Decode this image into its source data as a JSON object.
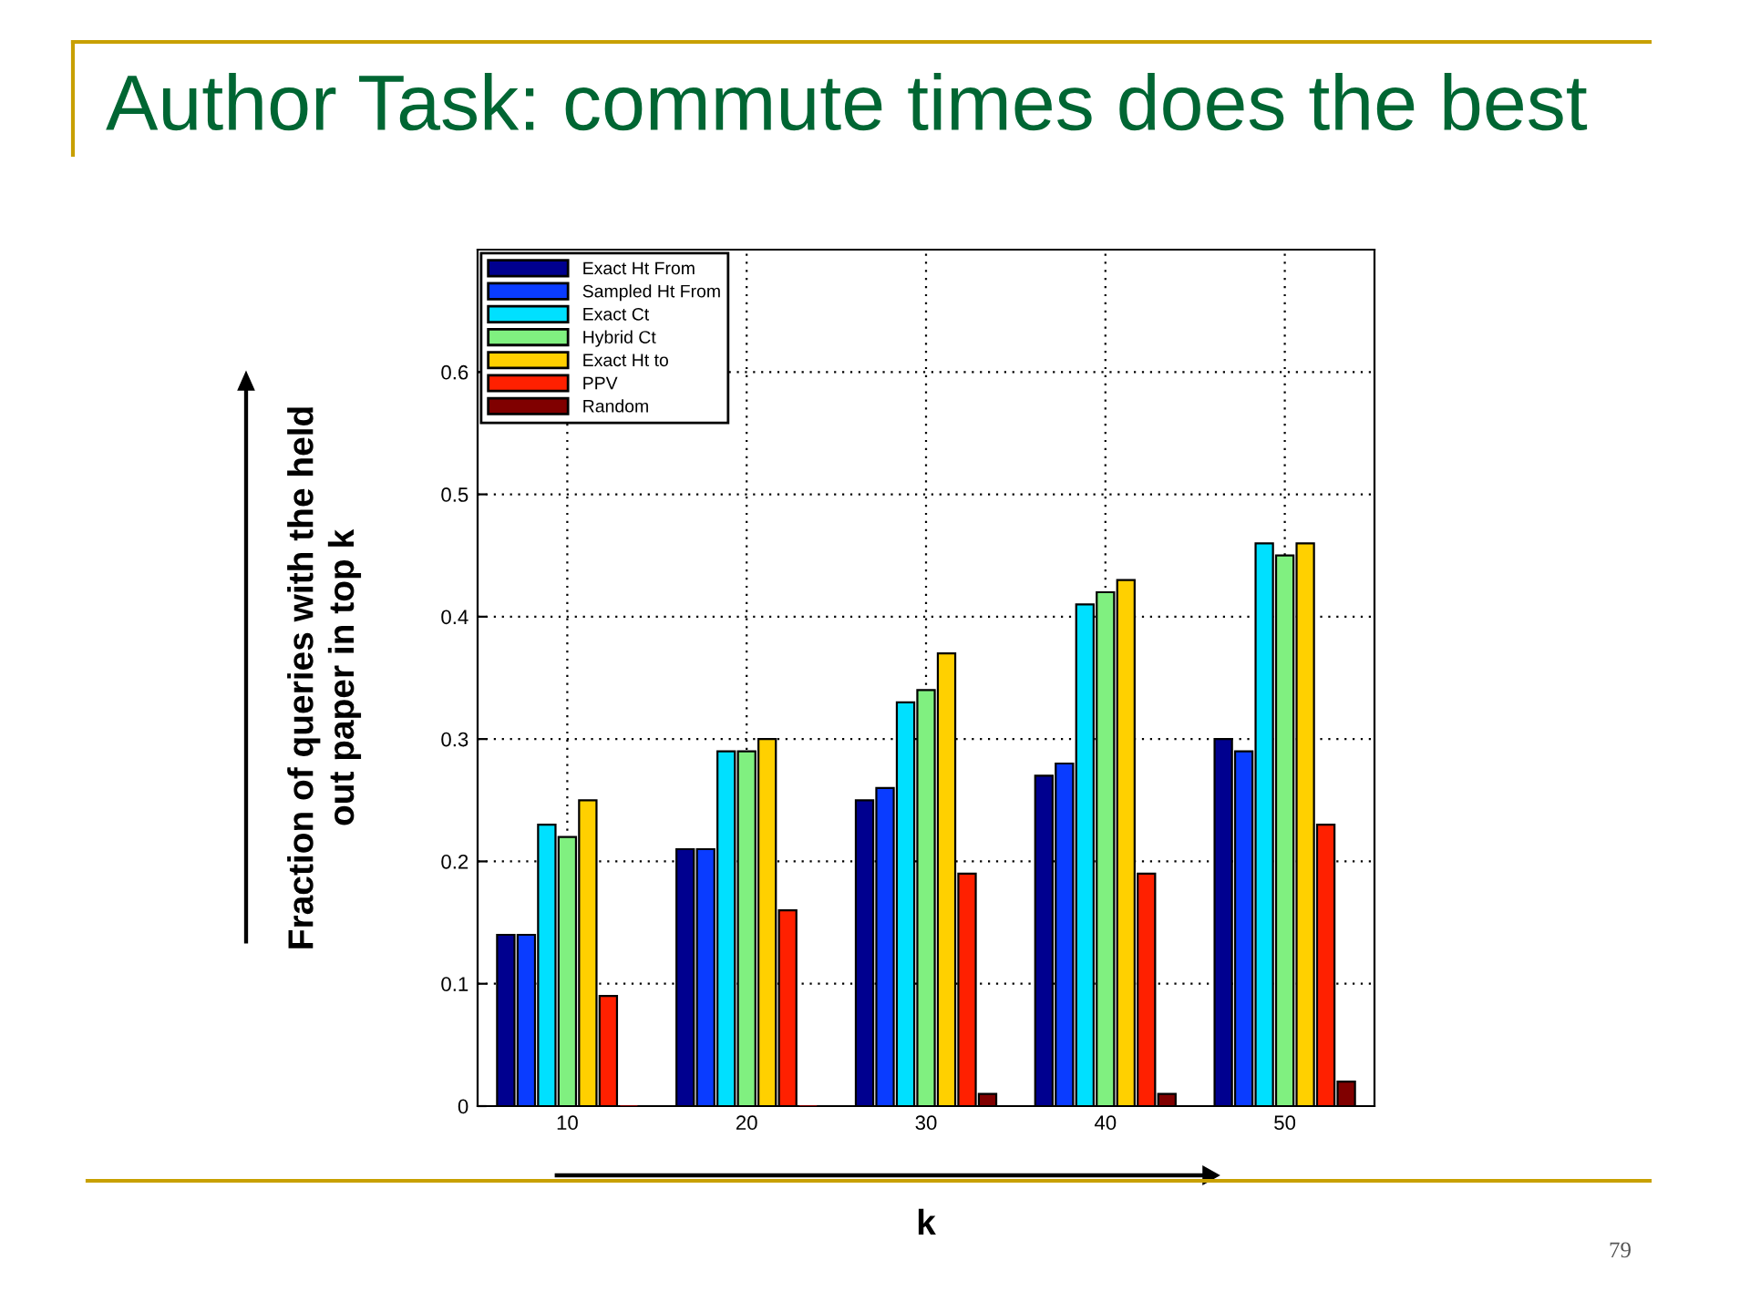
{
  "chart_data": {
    "type": "bar",
    "title": "Author Task: commute times does the best",
    "xlabel": "k",
    "ylabel": "Fraction of queries with the held\nout paper in top k",
    "categories": [
      "10",
      "20",
      "30",
      "40",
      "50"
    ],
    "series": [
      {
        "name": "Exact Ht From",
        "color": "#00008f",
        "values": [
          0.14,
          0.21,
          0.25,
          0.27,
          0.3
        ]
      },
      {
        "name": "Sampled Ht From",
        "color": "#0a3cff",
        "values": [
          0.14,
          0.21,
          0.26,
          0.28,
          0.29
        ]
      },
      {
        "name": "Exact Ct",
        "color": "#00e0ff",
        "values": [
          0.23,
          0.29,
          0.33,
          0.41,
          0.46
        ]
      },
      {
        "name": "Hybrid Ct",
        "color": "#80f080",
        "values": [
          0.22,
          0.29,
          0.34,
          0.42,
          0.45
        ]
      },
      {
        "name": "Exact Ht to",
        "color": "#ffd000",
        "values": [
          0.25,
          0.3,
          0.37,
          0.43,
          0.46
        ]
      },
      {
        "name": "PPV",
        "color": "#ff2000",
        "values": [
          0.09,
          0.16,
          0.19,
          0.19,
          0.23
        ]
      },
      {
        "name": "Random",
        "color": "#800000",
        "values": [
          0,
          0,
          0.01,
          0.01,
          0.02
        ]
      }
    ],
    "ylim": [
      0,
      0.7
    ],
    "yticks": [
      0,
      0.1,
      0.2,
      0.3,
      0.4,
      0.5,
      0.6
    ],
    "grid": true,
    "legend": "top left",
    "annotations": [
      "79"
    ]
  }
}
